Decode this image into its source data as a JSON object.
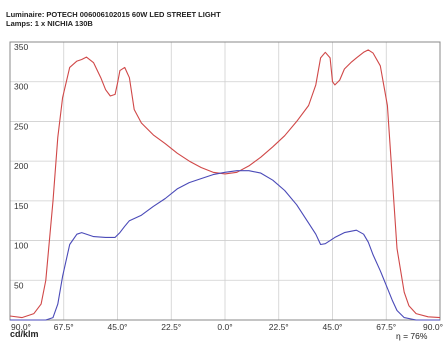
{
  "header": {
    "luminaire": "Luminaire: POTECH 006006102015 60W LED STREET LIGHT",
    "lamps": "Lamps: 1 x NICHIA 130B"
  },
  "footer": {
    "unit": "cd/klm",
    "efficiency": "η = 76%"
  },
  "chart_data": {
    "type": "line",
    "title": "",
    "xlabel": "",
    "ylabel": "cd/klm",
    "xlim": [
      -90,
      90
    ],
    "ylim": [
      0,
      350
    ],
    "x_tick_labels": [
      "90.0°",
      "67.5°",
      "45.0°",
      "22.5°",
      "0.0°",
      "22.5°",
      "45.0°",
      "67.5°",
      "90.0°"
    ],
    "y_ticks": [
      50,
      100,
      150,
      200,
      250,
      300,
      350
    ],
    "grid": true,
    "legend": "none",
    "series": [
      {
        "color": "#d04848",
        "x": [
          -90,
          -85,
          -80,
          -77,
          -75,
          -72,
          -70,
          -68,
          -65,
          -62,
          -60,
          -58,
          -55,
          -52,
          -50,
          -48,
          -46,
          -45,
          -44,
          -42,
          -40,
          -38,
          -35,
          -30,
          -25,
          -20,
          -15,
          -10,
          -5,
          0,
          5,
          10,
          15,
          20,
          25,
          30,
          35,
          38,
          40,
          42,
          44,
          45,
          46,
          48,
          50,
          53,
          55,
          58,
          60,
          62,
          65,
          68,
          70,
          72,
          75,
          77,
          80,
          85,
          90
        ],
        "y": [
          5,
          3,
          8,
          20,
          50,
          150,
          230,
          280,
          318,
          326,
          328,
          331,
          324,
          305,
          290,
          282,
          284,
          298,
          314,
          318,
          305,
          265,
          248,
          233,
          222,
          210,
          200,
          192,
          186,
          184,
          186,
          194,
          205,
          218,
          232,
          250,
          270,
          296,
          330,
          337,
          330,
          300,
          296,
          302,
          316,
          325,
          330,
          337,
          340,
          336,
          320,
          270,
          180,
          90,
          35,
          18,
          8,
          4,
          3
        ]
      },
      {
        "color": "#4a4ab8",
        "x": [
          -90,
          -85,
          -80,
          -75,
          -72,
          -70,
          -68,
          -65,
          -62,
          -60,
          -55,
          -50,
          -46,
          -44,
          -42,
          -40,
          -35,
          -30,
          -25,
          -20,
          -15,
          -10,
          -5,
          0,
          5,
          10,
          15,
          20,
          25,
          30,
          35,
          38,
          40,
          42,
          44,
          46,
          48,
          50,
          55,
          58,
          60,
          62,
          65,
          68,
          70,
          72,
          75,
          80,
          90
        ],
        "y": [
          0,
          0,
          0,
          0,
          3,
          20,
          55,
          95,
          108,
          110,
          105,
          104,
          104,
          110,
          118,
          125,
          132,
          143,
          153,
          165,
          173,
          178,
          183,
          186,
          188,
          188,
          185,
          176,
          163,
          145,
          122,
          108,
          95,
          96,
          100,
          104,
          107,
          110,
          113,
          108,
          98,
          82,
          62,
          40,
          25,
          12,
          3,
          0,
          0
        ]
      }
    ]
  }
}
